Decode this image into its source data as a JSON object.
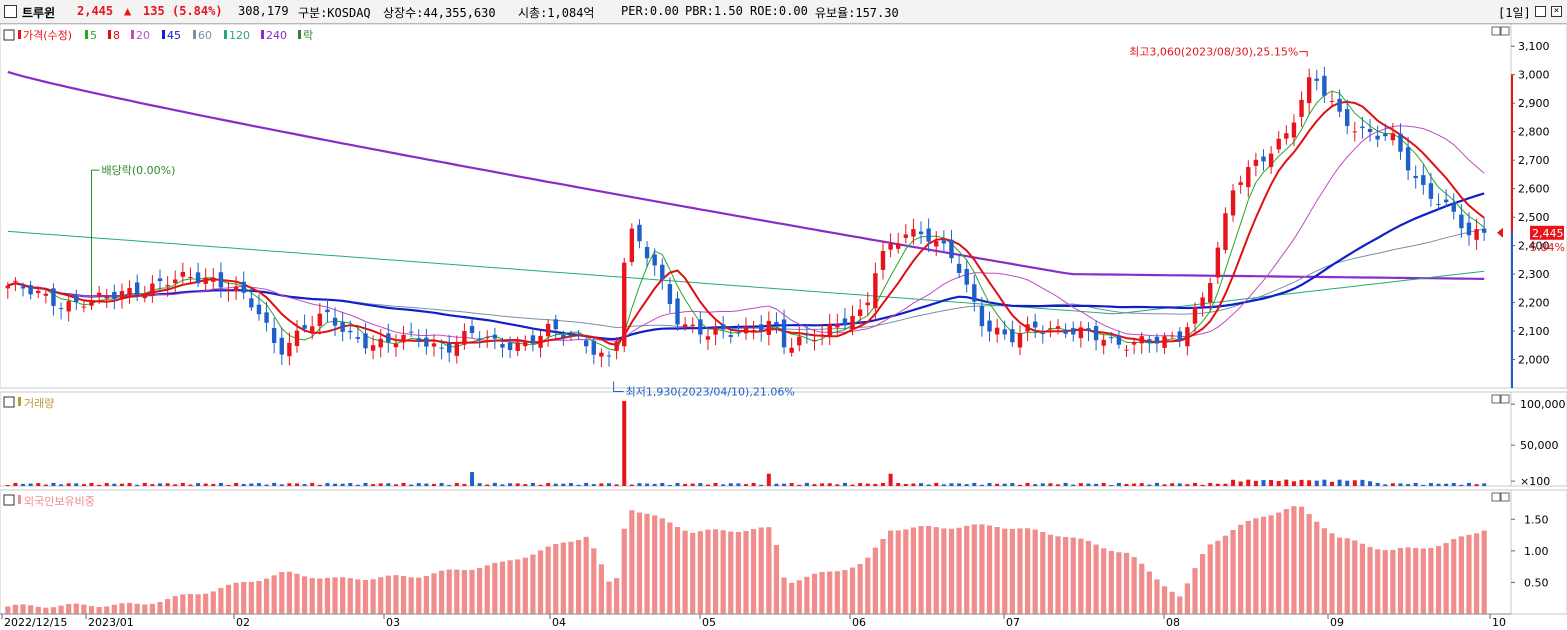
{
  "header": {
    "name": "트루윈",
    "price": "2,445",
    "arrow": "▲",
    "change": "135",
    "change_pct": "(5.84%)",
    "volume": "308,179",
    "market": "구분:KOSDAQ",
    "listed_shares": "상장수:44,355,630",
    "market_cap": "시총:1,084억",
    "per": "PER:0.00",
    "pbr": "PBR:1.50",
    "roe": "ROE:0.00",
    "float_ratio": "유보율:157.30",
    "period": "[1일]"
  },
  "colors": {
    "up": "#e8141c",
    "down": "#1f5fc8",
    "ma5": "#27a827",
    "ma8": "#e01010",
    "ma20": "#c04cc4",
    "ma45": "#1020c8",
    "ma60": "#7890a8",
    "ma120": "#28a878",
    "ma240": "#8a2cc8",
    "foreign": "#f08c8c"
  },
  "chart_data": [
    {
      "type": "candlestick",
      "legend": [
        "가격(수정)",
        "5",
        "8",
        "20",
        "45",
        "60",
        "120",
        "240",
        "락"
      ],
      "x_labels": [
        "2022/12/15",
        "2023/01",
        "02",
        "03",
        "04",
        "05",
        "06",
        "07",
        "08",
        "09",
        "10"
      ],
      "y_ticks": [
        "3,100",
        "3,000",
        "2,900",
        "2,800",
        "2,700",
        "2,600",
        "2,500",
        "2,400",
        "2,300",
        "2,200",
        "2,100",
        "2,000"
      ],
      "ylim": [
        1900,
        3150
      ],
      "current_price_label": "2,445",
      "current_pct_label": "5.84%",
      "annotations": {
        "high": "최고3,060(2023/08/30),25.15%",
        "low": "최저1,930(2023/04/10),21.06%",
        "dividend": "배당락(0.00%)"
      }
    },
    {
      "type": "bar",
      "title": "거래량",
      "y_ticks": [
        "100,000",
        "50,000",
        "×100"
      ],
      "ylim": [
        0,
        110000
      ]
    },
    {
      "type": "bar",
      "title": "외국인보유비중",
      "y_ticks": [
        "1.50",
        "1.00",
        "0.50"
      ],
      "ylim": [
        0,
        1.9
      ]
    }
  ]
}
